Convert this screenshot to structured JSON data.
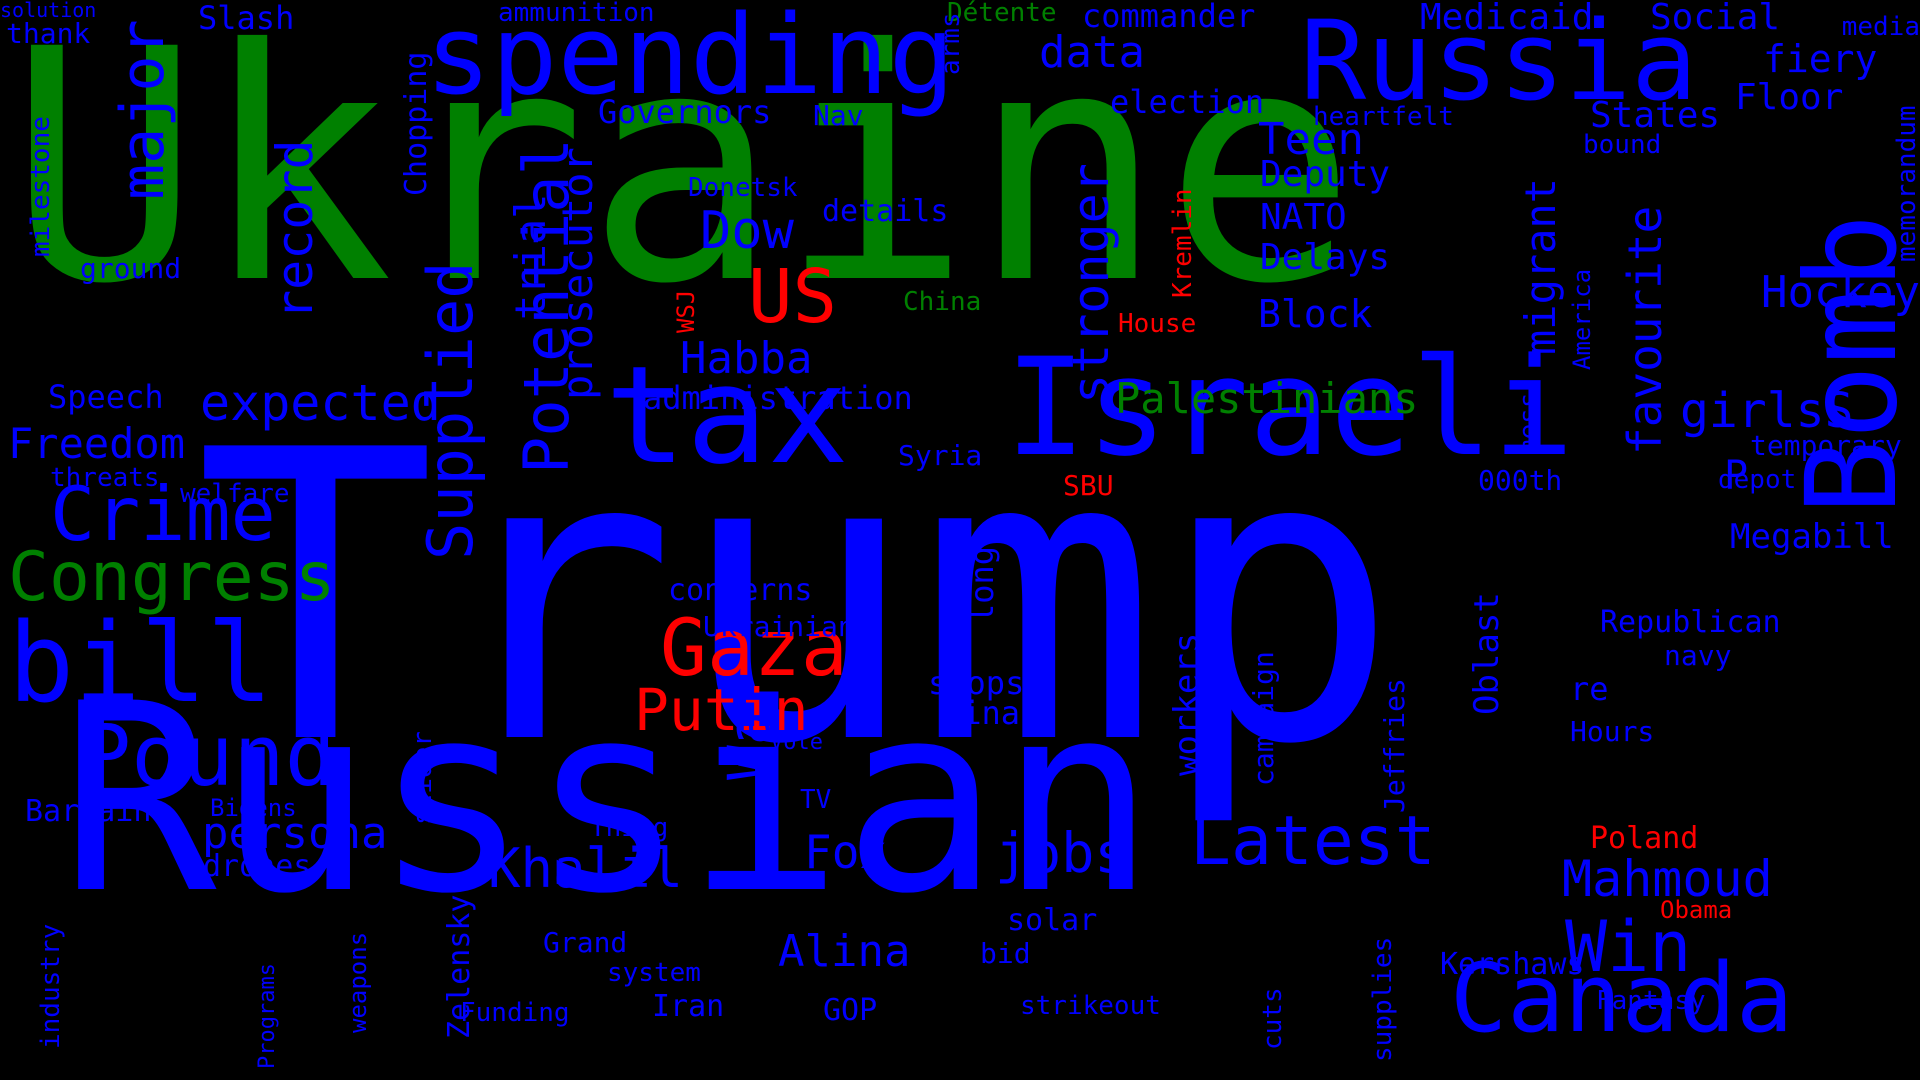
{
  "colors": {
    "blue": "#0000ff",
    "green": "#008000",
    "red": "#ff0000",
    "background": "#000000"
  },
  "words": [
    {
      "text": "Ukraine",
      "color": "green"
    },
    {
      "text": "Trump",
      "color": "blue"
    },
    {
      "text": "Russian",
      "color": "blue"
    },
    {
      "text": "Russia",
      "color": "blue"
    },
    {
      "text": "spending",
      "color": "blue"
    },
    {
      "text": "tax",
      "color": "blue"
    },
    {
      "text": "Israeli",
      "color": "blue"
    },
    {
      "text": "Bomb",
      "color": "blue"
    },
    {
      "text": "Canada",
      "color": "blue"
    },
    {
      "text": "bill",
      "color": "blue"
    },
    {
      "text": "Pound",
      "color": "blue"
    },
    {
      "text": "Crime",
      "color": "blue"
    },
    {
      "text": "Congress",
      "color": "green"
    },
    {
      "text": "Gaza",
      "color": "red"
    },
    {
      "text": "US",
      "color": "red"
    },
    {
      "text": "Putin",
      "color": "red"
    },
    {
      "text": "Latest",
      "color": "blue"
    },
    {
      "text": "major",
      "color": "blue"
    },
    {
      "text": "record",
      "color": "blue"
    },
    {
      "text": "expected",
      "color": "blue"
    },
    {
      "text": "Supplied",
      "color": "blue"
    },
    {
      "text": "Potential",
      "color": "blue"
    },
    {
      "text": "prosecutor",
      "color": "blue"
    },
    {
      "text": "trial",
      "color": "blue"
    },
    {
      "text": "stronger",
      "color": "blue"
    },
    {
      "text": "War",
      "color": "blue"
    },
    {
      "text": "Khalil",
      "color": "blue"
    },
    {
      "text": "Mahmoud",
      "color": "blue"
    },
    {
      "text": "Win",
      "color": "blue"
    },
    {
      "text": "jobs",
      "color": "blue"
    },
    {
      "text": "Fox",
      "color": "blue"
    },
    {
      "text": "Alina",
      "color": "blue"
    },
    {
      "text": "Dow",
      "color": "blue"
    },
    {
      "text": "Habba",
      "color": "blue"
    },
    {
      "text": "Freedom",
      "color": "blue"
    },
    {
      "text": "persona",
      "color": "blue"
    },
    {
      "text": "data",
      "color": "blue"
    },
    {
      "text": "Palestinians",
      "color": "green"
    },
    {
      "text": "Hockey",
      "color": "blue"
    },
    {
      "text": "girlsS",
      "color": "blue"
    },
    {
      "text": "migrant",
      "color": "blue"
    },
    {
      "text": "favourite",
      "color": "blue"
    },
    {
      "text": "Medicaid",
      "color": "blue"
    },
    {
      "text": "Social",
      "color": "blue"
    },
    {
      "text": "fiery",
      "color": "blue"
    },
    {
      "text": "Floor",
      "color": "blue"
    },
    {
      "text": "States",
      "color": "blue"
    },
    {
      "text": "Teen",
      "color": "blue"
    },
    {
      "text": "Deputy",
      "color": "blue"
    },
    {
      "text": "NATO",
      "color": "blue"
    },
    {
      "text": "Delays",
      "color": "blue"
    },
    {
      "text": "Block",
      "color": "blue"
    },
    {
      "text": "election",
      "color": "blue"
    },
    {
      "text": "commander",
      "color": "blue"
    },
    {
      "text": "Governors",
      "color": "blue"
    },
    {
      "text": "Nav",
      "color": "blue"
    },
    {
      "text": "Slash",
      "color": "blue"
    },
    {
      "text": "thank",
      "color": "blue"
    },
    {
      "text": "ammunition",
      "color": "blue"
    },
    {
      "text": "Détente",
      "color": "green"
    },
    {
      "text": "arms",
      "color": "blue"
    },
    {
      "text": "media",
      "color": "blue"
    },
    {
      "text": "heartfelt",
      "color": "blue"
    },
    {
      "text": "bound",
      "color": "blue"
    },
    {
      "text": "memorandum",
      "color": "blue"
    },
    {
      "text": "milestone",
      "color": "blue"
    },
    {
      "text": "ground",
      "color": "blue"
    },
    {
      "text": "Chopping",
      "color": "blue"
    },
    {
      "text": "Donetsk",
      "color": "blue"
    },
    {
      "text": "details",
      "color": "blue"
    },
    {
      "text": "China",
      "color": "green"
    },
    {
      "text": "Kremlin",
      "color": "red"
    },
    {
      "text": "House",
      "color": "red"
    },
    {
      "text": "WSJ",
      "color": "red"
    },
    {
      "text": "America",
      "color": "blue"
    },
    {
      "text": "mess",
      "color": "blue"
    },
    {
      "text": "temporary",
      "color": "blue"
    },
    {
      "text": "depot",
      "color": "blue"
    },
    {
      "text": "P",
      "color": "blue"
    },
    {
      "text": "Megabill",
      "color": "blue"
    },
    {
      "text": "000th",
      "color": "blue"
    },
    {
      "text": "SBU",
      "color": "red"
    },
    {
      "text": "Syria",
      "color": "blue"
    },
    {
      "text": "administration",
      "color": "blue"
    },
    {
      "text": "Speech",
      "color": "blue"
    },
    {
      "text": "threats",
      "color": "blue"
    },
    {
      "text": "welfare",
      "color": "blue"
    },
    {
      "text": "concerns",
      "color": "blue"
    },
    {
      "text": "Ukrainian",
      "color": "blue"
    },
    {
      "text": "long",
      "color": "blue"
    },
    {
      "text": "book",
      "color": "blue"
    },
    {
      "text": "workers",
      "color": "blue"
    },
    {
      "text": "campaign",
      "color": "blue"
    },
    {
      "text": "Jeffries",
      "color": "blue"
    },
    {
      "text": "Oblast",
      "color": "blue"
    },
    {
      "text": "Republican",
      "color": "blue"
    },
    {
      "text": "navy",
      "color": "blue"
    },
    {
      "text": "re",
      "color": "blue"
    },
    {
      "text": "Hours",
      "color": "blue"
    },
    {
      "text": "stops",
      "color": "blue"
    },
    {
      "text": "Final",
      "color": "blue"
    },
    {
      "text": "Vote",
      "color": "blue"
    },
    {
      "text": "TV",
      "color": "blue"
    },
    {
      "text": "Thing",
      "color": "blue"
    },
    {
      "text": "slider",
      "color": "blue"
    },
    {
      "text": "frontline",
      "color": "blue"
    },
    {
      "text": "Bargain",
      "color": "blue"
    },
    {
      "text": "Bidens",
      "color": "blue"
    },
    {
      "text": "drones",
      "color": "blue"
    },
    {
      "text": "industry",
      "color": "blue"
    },
    {
      "text": "Programs",
      "color": "blue"
    },
    {
      "text": "weapons",
      "color": "blue"
    },
    {
      "text": "Zelensky",
      "color": "blue"
    },
    {
      "text": "Funding",
      "color": "blue"
    },
    {
      "text": "Grand",
      "color": "blue"
    },
    {
      "text": "system",
      "color": "blue"
    },
    {
      "text": "Iran",
      "color": "blue"
    },
    {
      "text": "GOP",
      "color": "blue"
    },
    {
      "text": "solar",
      "color": "blue"
    },
    {
      "text": "bid",
      "color": "blue"
    },
    {
      "text": "strikeout",
      "color": "blue"
    },
    {
      "text": "cuts",
      "color": "blue"
    },
    {
      "text": "supplies",
      "color": "blue"
    },
    {
      "text": "Fantasy",
      "color": "blue"
    },
    {
      "text": "Kershaws",
      "color": "blue"
    },
    {
      "text": "Obama",
      "color": "red"
    },
    {
      "text": "Poland",
      "color": "red"
    },
    {
      "text": "solution",
      "color": "blue"
    }
  ]
}
